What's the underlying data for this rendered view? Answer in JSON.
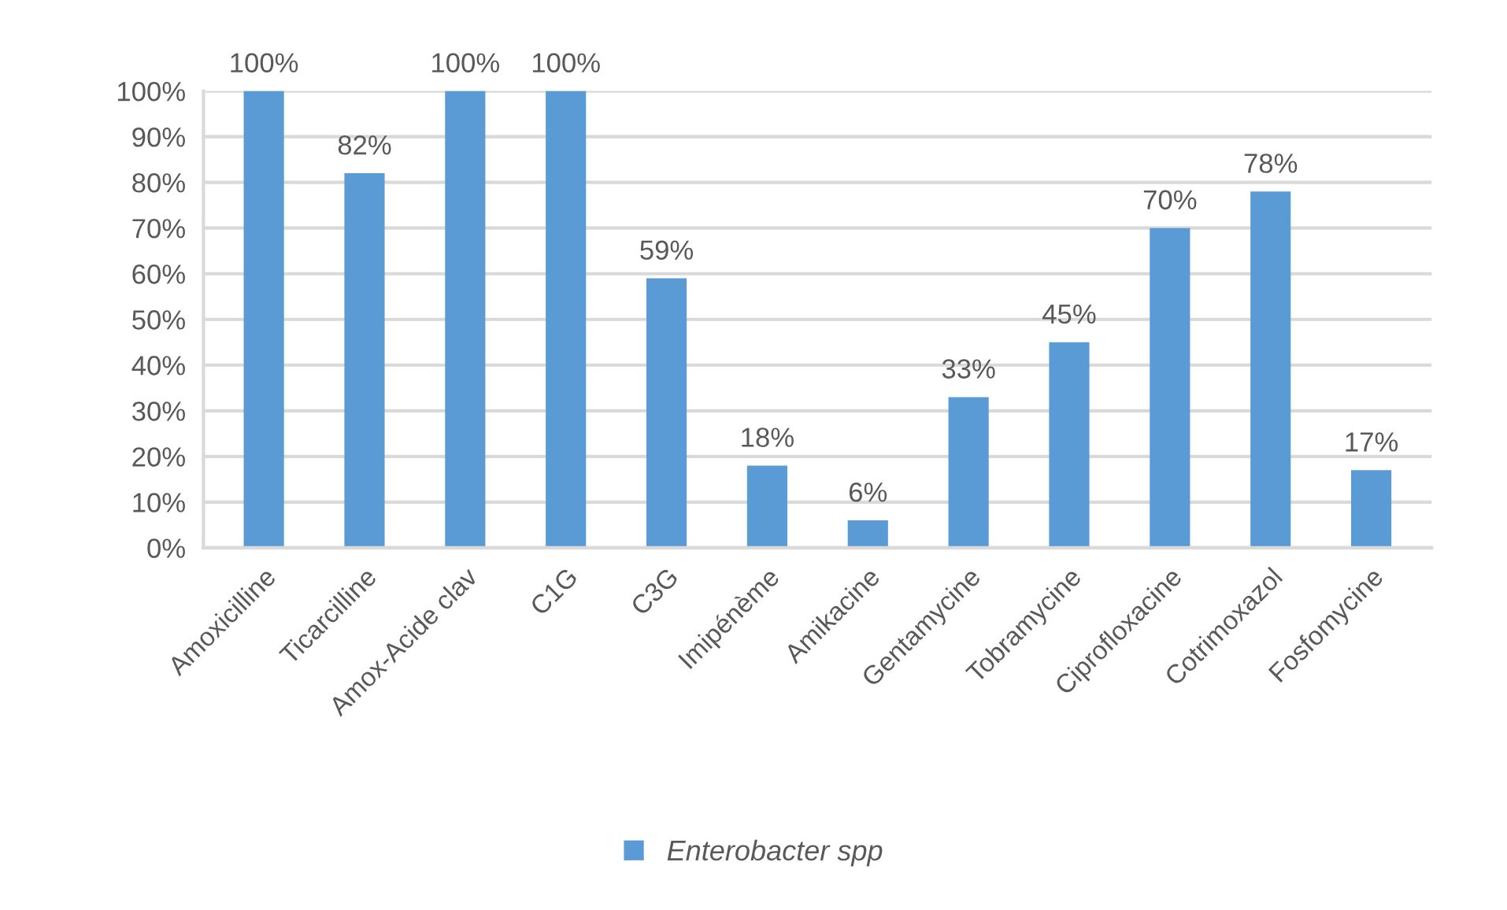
{
  "chart_data": {
    "type": "bar",
    "categories": [
      "Amoxicilline",
      "Ticarcilline",
      "Amox-Acide clav",
      "C1G",
      "C3G",
      "Imipénème",
      "Amikacine",
      "Gentamycine",
      "Tobramycine",
      "Ciprofloxacine",
      "Cotrimoxazol",
      "Fosfomycine"
    ],
    "series": [
      {
        "name": "Enterobacter spp",
        "color": "#5b9bd5",
        "values": [
          100,
          82,
          100,
          100,
          59,
          18,
          6,
          33,
          45,
          70,
          78,
          17
        ],
        "value_labels": [
          "100%",
          "82%",
          "100%",
          "100%",
          "59%",
          "18%",
          "6%",
          "33%",
          "45%",
          "70%",
          "78%",
          "17%"
        ]
      }
    ],
    "ylim": [
      0,
      100
    ],
    "yticks": [
      {
        "value": 0,
        "label": "0%"
      },
      {
        "value": 10,
        "label": "10%"
      },
      {
        "value": 20,
        "label": "20%"
      },
      {
        "value": 30,
        "label": "30%"
      },
      {
        "value": 40,
        "label": "40%"
      },
      {
        "value": 50,
        "label": "50%"
      },
      {
        "value": 60,
        "label": "60%"
      },
      {
        "value": 70,
        "label": "70%"
      },
      {
        "value": 80,
        "label": "80%"
      },
      {
        "value": 90,
        "label": "90%"
      },
      {
        "value": 100,
        "label": "100%"
      }
    ],
    "grid": "y",
    "legend": "bottom"
  }
}
